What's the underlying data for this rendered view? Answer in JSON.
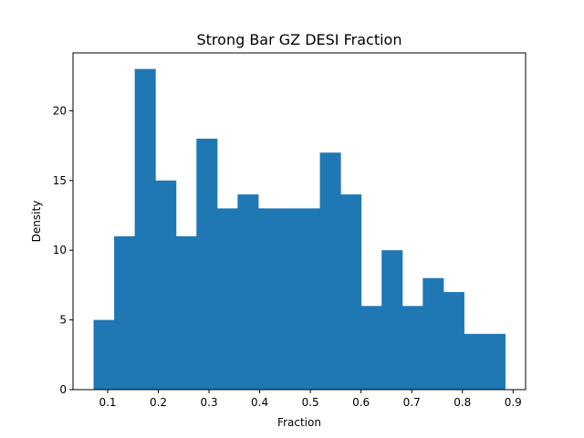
{
  "chart_data": {
    "type": "bar",
    "title": "Strong Bar GZ DESI Fraction",
    "xlabel": "Fraction",
    "ylabel": "Density",
    "xlim": [
      0.0316,
      0.9247
    ],
    "ylim": [
      0,
      24.15
    ],
    "xticks": [
      0.1,
      0.2,
      0.3,
      0.4,
      0.5,
      0.6,
      0.7,
      0.8,
      0.9
    ],
    "xtick_labels": [
      "0.1",
      "0.2",
      "0.3",
      "0.4",
      "0.5",
      "0.6",
      "0.7",
      "0.8",
      "0.9"
    ],
    "yticks": [
      0,
      5,
      10,
      15,
      20
    ],
    "ytick_labels": [
      "0",
      "5",
      "10",
      "15",
      "20"
    ],
    "bin_edges": [
      0.0722,
      0.1128,
      0.1534,
      0.194,
      0.2346,
      0.2752,
      0.3158,
      0.3564,
      0.397,
      0.4376,
      0.4782,
      0.5188,
      0.5594,
      0.6,
      0.6406,
      0.6812,
      0.7218,
      0.7624,
      0.803,
      0.8436,
      0.8841
    ],
    "values": [
      5,
      11,
      23,
      15,
      11,
      18,
      13,
      14,
      13,
      13,
      13,
      17,
      14,
      6,
      10,
      6,
      8,
      7,
      4,
      4
    ],
    "color": "#1f77b4",
    "grid": false
  }
}
